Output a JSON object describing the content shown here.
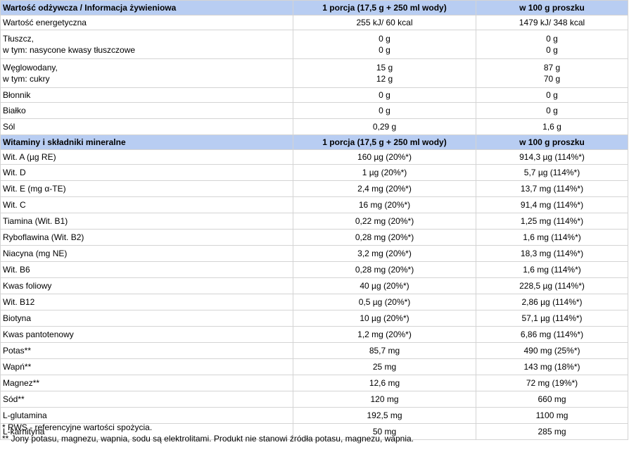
{
  "section1": {
    "header": [
      "Wartość odżywcza / Informacja żywieniowa",
      "1 porcja (17,5 g + 250 ml wody)",
      "w 100 g proszku"
    ],
    "rows": [
      {
        "label": [
          "Wartość energetyczna"
        ],
        "portion": [
          "255 kJ/ 60 kcal"
        ],
        "per100": [
          "1479 kJ/ 348 kcal"
        ]
      },
      {
        "label": [
          "Tłuszcz,",
          "w tym: nasycone kwasy tłuszczowe"
        ],
        "portion": [
          "0 g",
          "0 g"
        ],
        "per100": [
          "0 g",
          "0 g"
        ]
      },
      {
        "label": [
          "Węglowodany,",
          "w tym: cukry"
        ],
        "portion": [
          "15 g",
          "12 g"
        ],
        "per100": [
          "87 g",
          "70 g"
        ]
      },
      {
        "label": [
          "Błonnik"
        ],
        "portion": [
          "0 g"
        ],
        "per100": [
          "0 g"
        ]
      },
      {
        "label": [
          "Białko"
        ],
        "portion": [
          "0 g"
        ],
        "per100": [
          "0 g"
        ]
      },
      {
        "label": [
          "Sól"
        ],
        "portion": [
          "0,29 g"
        ],
        "per100": [
          "1,6 g"
        ]
      }
    ]
  },
  "section2": {
    "header": [
      "Witaminy i składniki mineralne",
      "1 porcja (17,5 g + 250 ml wody)",
      "w 100 g proszku"
    ],
    "rows": [
      {
        "label": "Wit. A (µg RE)",
        "portion": "160 µg (20%*)",
        "per100": "914,3 µg (114%*)"
      },
      {
        "label": "Wit. D",
        "portion": "1 µg (20%*)",
        "per100": "5,7 µg (114%*)"
      },
      {
        "label": "Wit. E (mg α-TE)",
        "portion": "2,4 mg (20%*)",
        "per100": "13,7 mg (114%*)"
      },
      {
        "label": "Wit. C",
        "portion": "16 mg (20%*)",
        "per100": "91,4 mg (114%*)"
      },
      {
        "label": "Tiamina (Wit. B1)",
        "portion": "0,22 mg (20%*)",
        "per100": "1,25 mg (114%*)"
      },
      {
        "label": "Ryboflawina (Wit. B2)",
        "portion": "0,28 mg (20%*)",
        "per100": "1,6 mg (114%*)"
      },
      {
        "label": "Niacyna (mg NE)",
        "portion": "3,2 mg (20%*)",
        "per100": "18,3 mg (114%*)"
      },
      {
        "label": "Wit. B6",
        "portion": "0,28 mg (20%*)",
        "per100": "1,6 mg (114%*)"
      },
      {
        "label": "Kwas foliowy",
        "portion": "40 µg (20%*)",
        "per100": "228,5 µg (114%*)"
      },
      {
        "label": "Wit. B12",
        "portion": "0,5 µg (20%*)",
        "per100": "2,86 µg (114%*)"
      },
      {
        "label": "Biotyna",
        "portion": "10 µg (20%*)",
        "per100": "57,1 µg (114%*)"
      },
      {
        "label": "Kwas pantotenowy",
        "portion": "1,2 mg (20%*)",
        "per100": "6,86 mg (114%*)"
      },
      {
        "label": "Potas**",
        "portion": "85,7 mg",
        "per100": "490 mg (25%*)"
      },
      {
        "label": "Wapń**",
        "portion": "25 mg",
        "per100": "143 mg (18%*)"
      },
      {
        "label": "Magnez**",
        "portion": "12,6 mg",
        "per100": "72 mg (19%*)"
      },
      {
        "label": "Sód**",
        "portion": "120 mg",
        "per100": "660 mg"
      },
      {
        "label": "L-glutamina",
        "portion": "192,5 mg",
        "per100": "1100 mg"
      },
      {
        "label": "L-karnityna",
        "portion": "50 mg",
        "per100": "285 mg"
      }
    ]
  },
  "notes": [
    "* RWS - referencyjne wartości spożycia.",
    "** Jony potasu, magnezu, wapnia, sodu są elektrolitami. Produkt nie stanowi źródła potasu, magnezu, wapnia."
  ]
}
